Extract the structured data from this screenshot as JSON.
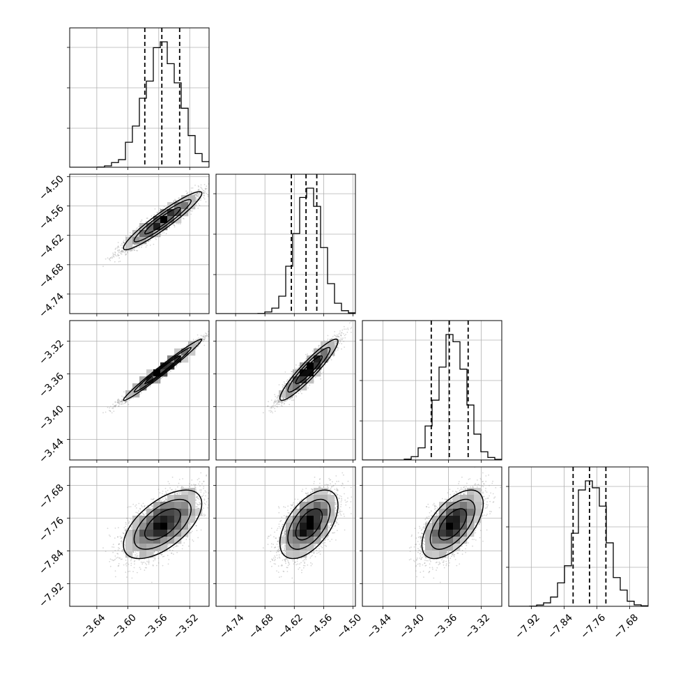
{
  "chart_data": {
    "type": "corner",
    "n_params": 4,
    "colors": {
      "line": "#000000",
      "grid": "#b0b0b0",
      "scatter": "#8a8a8a"
    },
    "grid": true,
    "params": [
      {
        "mean": -3.555,
        "sd": 0.023,
        "range": [
          -3.675,
          -3.495
        ],
        "ticks": [
          -3.64,
          -3.6,
          -3.56,
          -3.52
        ],
        "tick_labels": [
          "−3.64",
          "−3.60",
          "−3.56",
          "−3.52"
        ],
        "quantiles": [
          -3.578,
          -3.556,
          -3.533
        ]
      },
      {
        "mean": -4.59,
        "sd": 0.027,
        "range": [
          -4.78,
          -4.495
        ],
        "ticks": [
          -4.74,
          -4.68,
          -4.62,
          -4.56,
          -4.5
        ],
        "tick_labels": [
          "−4.74",
          "−4.68",
          "−4.62",
          "−4.56",
          "−4.50"
        ],
        "quantiles": [
          -4.626,
          -4.596,
          -4.574
        ]
      },
      {
        "mean": -3.355,
        "sd": 0.017,
        "range": [
          -3.465,
          -3.295
        ],
        "ticks": [
          -3.44,
          -3.4,
          -3.36,
          -3.32
        ],
        "tick_labels": [
          "−3.44",
          "−3.40",
          "−3.36",
          "−3.32"
        ],
        "quantiles": [
          -3.381,
          -3.359,
          -3.336
        ]
      },
      {
        "mean": -7.775,
        "sd": 0.038,
        "range": [
          -7.975,
          -7.635
        ],
        "ticks": [
          -7.92,
          -7.84,
          -7.76,
          -7.68
        ],
        "tick_labels": [
          "−7.92",
          "−7.84",
          "−7.76",
          "−7.68"
        ],
        "quantiles": [
          -7.818,
          -7.778,
          -7.738
        ]
      }
    ],
    "correlations": [
      [
        1.0,
        0.94,
        0.985,
        0.6
      ],
      [
        0.94,
        1.0,
        0.93,
        0.55
      ],
      [
        0.985,
        0.93,
        1.0,
        0.6
      ],
      [
        0.6,
        0.55,
        0.6,
        1.0
      ]
    ]
  }
}
